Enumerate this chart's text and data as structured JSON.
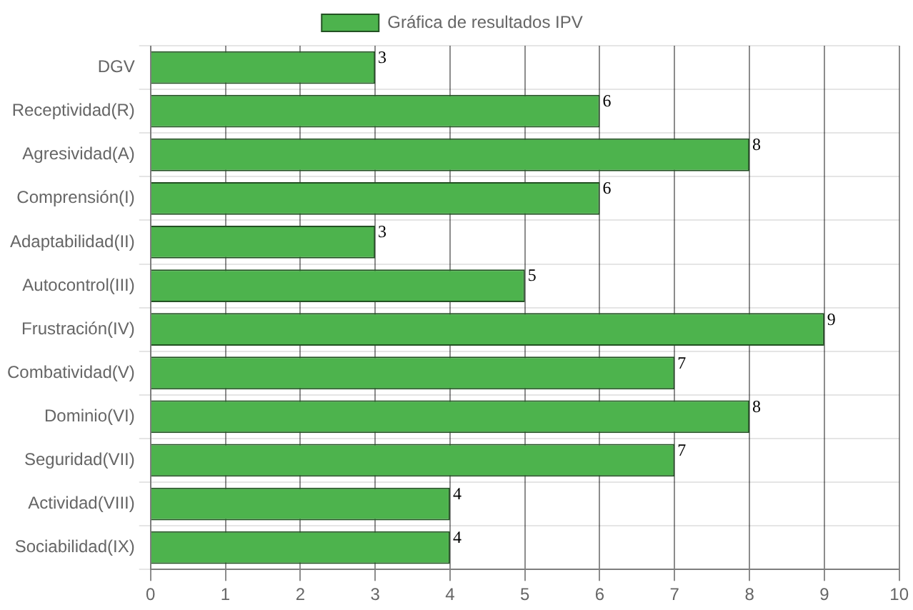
{
  "chart_data": {
    "type": "bar",
    "orientation": "horizontal",
    "categories": [
      "DGV",
      "Receptividad(R)",
      "Agresividad(A)",
      "Comprensión(I)",
      "Adaptabilidad(II)",
      "Autocontrol(III)",
      "Frustración(IV)",
      "Combatividad(V)",
      "Dominio(VI)",
      "Seguridad(VII)",
      "Actividad(VIII)",
      "Sociabilidad(IX)"
    ],
    "series": [
      {
        "name": "Gráfica de resultados IPV",
        "color": "#4db34d",
        "values": [
          3,
          6,
          8,
          6,
          3,
          5,
          9,
          7,
          8,
          7,
          4,
          4
        ]
      }
    ],
    "xlim": [
      0,
      10
    ],
    "xticks": [
      0,
      1,
      2,
      3,
      4,
      5,
      6,
      7,
      8,
      9,
      10
    ],
    "grid": true,
    "legend": "top",
    "data_labels": true
  }
}
